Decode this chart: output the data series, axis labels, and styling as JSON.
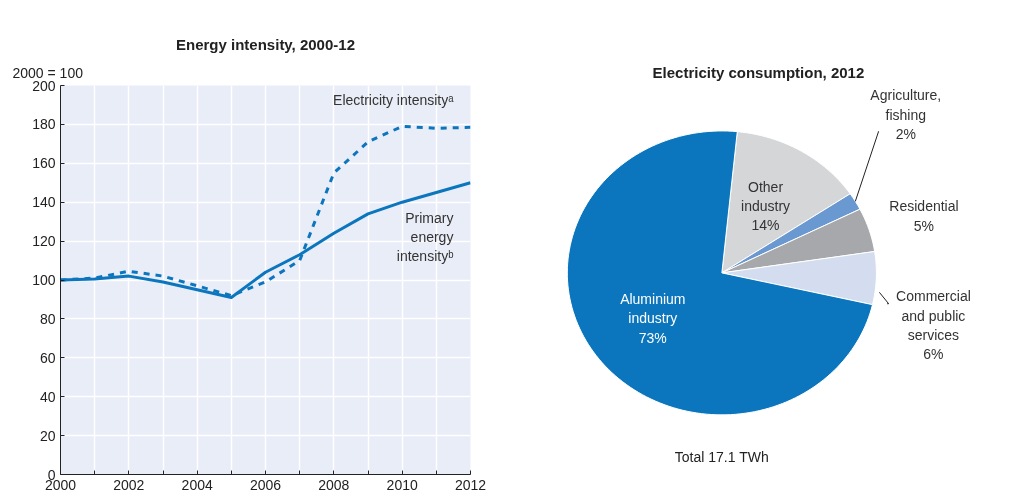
{
  "chart_data": [
    {
      "type": "line",
      "title": "Energy intensity, 2000-12",
      "ylabel": "2000 = 100",
      "x": [
        2000,
        2001,
        2002,
        2003,
        2004,
        2005,
        2006,
        2007,
        2008,
        2009,
        2010,
        2011,
        2012
      ],
      "series": [
        {
          "name": "Electricity intensityᵃ",
          "color": "#0b76bd",
          "line_style": "dashed",
          "values": [
            100,
            101,
            104.5,
            102,
            97,
            92,
            99,
            110,
            155,
            171,
            179,
            178,
            178.5
          ]
        },
        {
          "name": "Primary energy intensityᵇ",
          "color": "#0b76bd",
          "line_style": "solid",
          "values": [
            100,
            100.5,
            102,
            99,
            95,
            91,
            104,
            113,
            124,
            134,
            140,
            145,
            150
          ]
        }
      ],
      "xlim": [
        2000,
        2012
      ],
      "xticks": [
        2000,
        {
          "value": 2001,
          "label": null
        },
        2002,
        {
          "value": 2003,
          "label": null
        },
        2004,
        {
          "value": 2005,
          "label": null
        },
        2006,
        {
          "value": 2007,
          "label": null
        },
        2008,
        {
          "value": 2009,
          "label": null
        },
        2010,
        {
          "value": 2011,
          "label": null
        },
        2012
      ],
      "ylim": [
        0,
        200
      ],
      "yticks": [
        0,
        20,
        40,
        60,
        80,
        100,
        120,
        140,
        160,
        180,
        200
      ],
      "grid": true,
      "legend": false,
      "marker": "none"
    },
    {
      "type": "pie",
      "title": "Electricity consumption,  2012",
      "categories": [
        "Other industry",
        "Agriculture, fishing",
        "Residential",
        "Commercial and public services",
        "Aluminium industry"
      ],
      "values": [
        14,
        2,
        5,
        6,
        73
      ],
      "value_labels": [
        "14%",
        "2%",
        "5%",
        "6%",
        "73%"
      ],
      "colors": [
        "#d5d6d8",
        "#6a98d0",
        "#a6a8ab",
        "#d3ddef",
        "#0b76bd"
      ],
      "annotations": [
        "Total 17.1 TWh"
      ]
    }
  ]
}
